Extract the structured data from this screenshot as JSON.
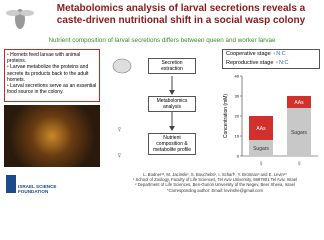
{
  "title": [
    "Metabolomics analysis of larval secretions reveals a",
    "caste-driven nutritional shift in a social wasp colony"
  ],
  "subtitle": "Nutrient composition of larval secretions differs between queen and worker larvae",
  "bullets": [
    "Hornets feed larvae with animal proteins.",
    "Larvae metabolize the proteins and secrete its products back to the adult hornets.",
    "Larval secretions serve as an essential food source in the colony."
  ],
  "flow": [
    "Secretion extraction",
    "Metabolomics analysis",
    "Nutrient composition & metabolite profile"
  ],
  "legend": [
    {
      "label": "Cooperative stage",
      "ratio": "♀N:C"
    },
    {
      "label": "Reproductive stage",
      "ratio": "♀N:C"
    }
  ],
  "chart_data": {
    "type": "bar",
    "ylabel": "Concentration (mM)",
    "ylim": [
      0,
      40
    ],
    "yticks": [
      0,
      10,
      20,
      30,
      40
    ],
    "categories": [
      null,
      null
    ],
    "series": [
      {
        "name": "Sugars",
        "color": "#c8c8c8",
        "values": [
          8,
          24
        ]
      },
      {
        "name": "AAs",
        "color": "#d2302c",
        "values": [
          12,
          6
        ]
      }
    ]
  },
  "logo": [
    "ISRAEL SCIENCE",
    "FOUNDATION"
  ],
  "authors": "L. Bodner¹², M. Jacinski², S. Bouchebti¹, I. Scharf¹, Y. Brotman³ and E. Levin¹*",
  "affiliations": [
    "¹ School of Zoology, Faculty of Life Sciences, Tel Aviv University, 6997801 Tel Aviv, Israel",
    "² Department of Life Sciences, Ben-Gurion University of the Negev, Beer Sheva, Israel",
    "*Corresponding author: Email: levinshe@gmail.com"
  ]
}
